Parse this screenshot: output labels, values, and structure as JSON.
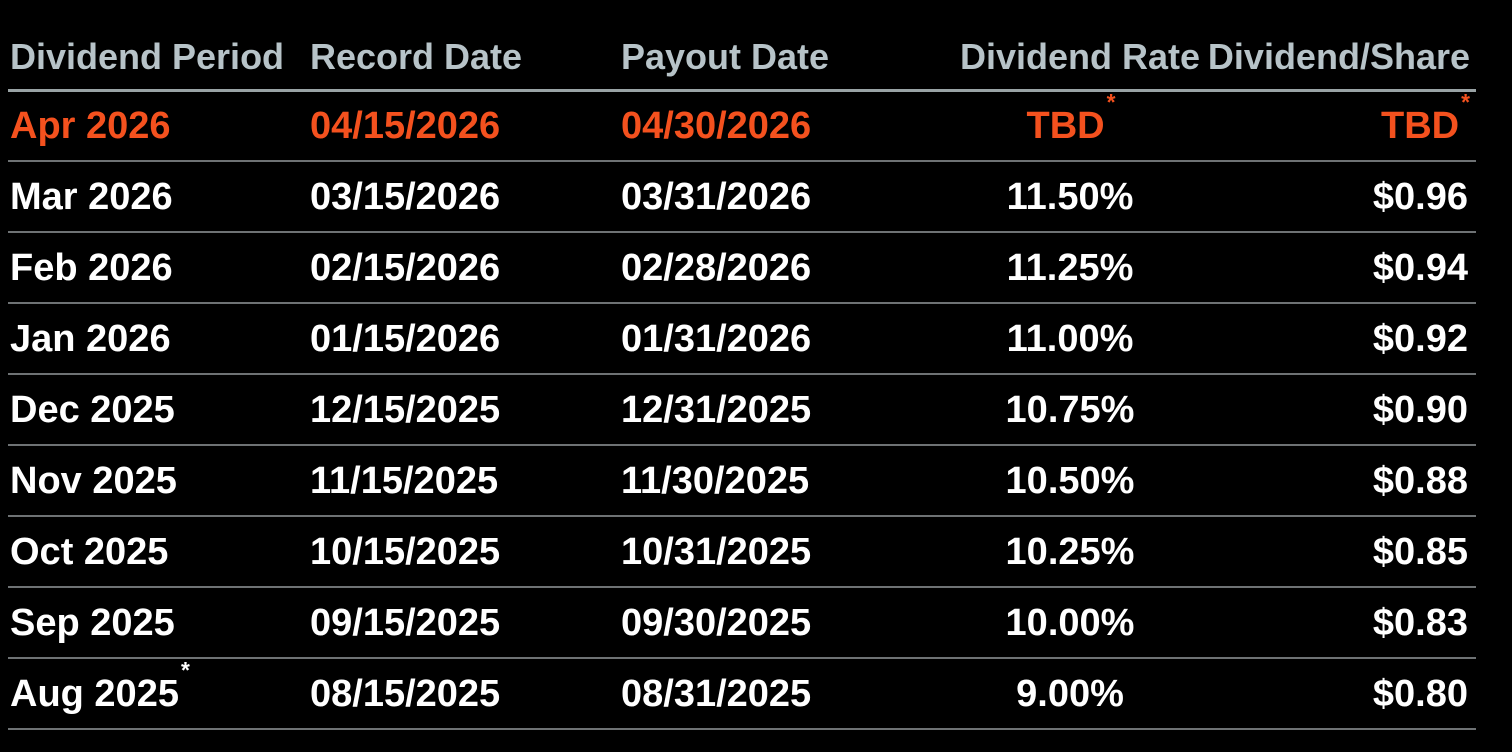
{
  "table": {
    "columns": [
      {
        "label": "Dividend Period"
      },
      {
        "label": "Record Date"
      },
      {
        "label": "Payout Date"
      },
      {
        "label": "Dividend Rate"
      },
      {
        "label": "Dividend/Share"
      }
    ],
    "rows": [
      {
        "period": "Apr 2026",
        "record_date": "04/15/2026",
        "payout_date": "04/30/2026",
        "rate": "TBD",
        "rate_note": "*",
        "share": "TBD",
        "share_note": "*",
        "highlight": true
      },
      {
        "period": "Mar 2026",
        "record_date": "03/15/2026",
        "payout_date": "03/31/2026",
        "rate": "11.50%",
        "share": "$0.96"
      },
      {
        "period": "Feb 2026",
        "record_date": "02/15/2026",
        "payout_date": "02/28/2026",
        "rate": "11.25%",
        "share": "$0.94"
      },
      {
        "period": "Jan 2026",
        "record_date": "01/15/2026",
        "payout_date": "01/31/2026",
        "rate": "11.00%",
        "share": "$0.92"
      },
      {
        "period": "Dec 2025",
        "record_date": "12/15/2025",
        "payout_date": "12/31/2025",
        "rate": "10.75%",
        "share": "$0.90"
      },
      {
        "period": "Nov 2025",
        "record_date": "11/15/2025",
        "payout_date": "11/30/2025",
        "rate": "10.50%",
        "share": "$0.88"
      },
      {
        "period": "Oct 2025",
        "record_date": "10/15/2025",
        "payout_date": "10/31/2025",
        "rate": "10.25%",
        "share": "$0.85"
      },
      {
        "period": "Sep 2025",
        "record_date": "09/15/2025",
        "payout_date": "09/30/2025",
        "rate": "10.00%",
        "share": "$0.83"
      },
      {
        "period": "Aug 2025",
        "period_note": "*",
        "record_date": "08/15/2025",
        "payout_date": "08/31/2025",
        "rate": "9.00%",
        "share": "$0.80"
      }
    ]
  },
  "colors": {
    "background": "#000000",
    "accent_orange": "#F4511E",
    "header_text": "#B7C3C8",
    "row_text": "#FFFFFF",
    "header_rule": "#99A3A5",
    "row_rule": "#6E7274"
  }
}
